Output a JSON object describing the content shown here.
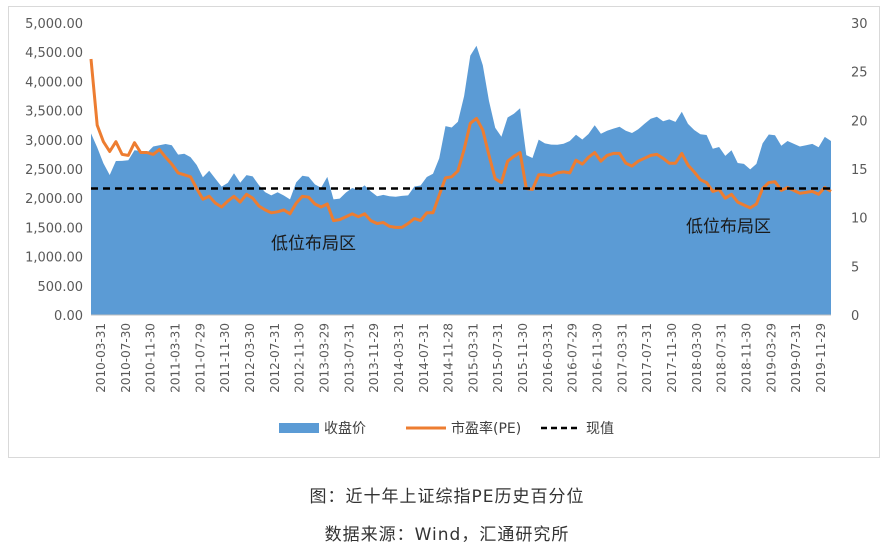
{
  "caption": {
    "title": "图：近十年上证综指PE历史百分位",
    "source": "数据来源：Wind，汇通研究所"
  },
  "colors": {
    "area": "#5B9BD5",
    "pe_line": "#ED7D31",
    "current_line": "#000000",
    "axis_text": "#595959"
  },
  "chart_data": {
    "type": "area",
    "x_labels": [
      "2010-03-31",
      "2010-07-30",
      "2010-11-30",
      "2011-03-31",
      "2011-07-29",
      "2011-11-30",
      "2012-03-30",
      "2012-07-31",
      "2012-11-30",
      "2013-03-29",
      "2013-07-31",
      "2013-11-29",
      "2014-03-31",
      "2014-07-31",
      "2014-11-28",
      "2015-03-31",
      "2015-07-31",
      "2015-11-30",
      "2016-03-31",
      "2016-07-29",
      "2016-11-30",
      "2017-03-31",
      "2017-07-31",
      "2017-11-30",
      "2018-03-30",
      "2018-07-31",
      "2018-11-30",
      "2019-03-29",
      "2019-07-31",
      "2019-11-29"
    ],
    "left_axis": {
      "min": 0,
      "max": 5000,
      "step": 500,
      "ticks": [
        "0.00",
        "500.00",
        "1,000.00",
        "1,500.00",
        "2,000.00",
        "2,500.00",
        "3,000.00",
        "3,500.00",
        "4,000.00",
        "4,500.00",
        "5,000.00"
      ]
    },
    "right_axis": {
      "min": 0,
      "max": 30,
      "step": 5,
      "ticks": [
        "0",
        "5",
        "10",
        "15",
        "20",
        "25",
        "30"
      ]
    },
    "legend": [
      "收盘价",
      "市盈率(PE)",
      "现值"
    ],
    "annotations": [
      "低位布局区",
      "低位布局区"
    ],
    "current_value": 13,
    "series": [
      {
        "name": "收盘价",
        "axis": "left",
        "kind": "area",
        "values": [
          3109,
          2870,
          2600,
          2398,
          2637,
          2638,
          2650,
          2820,
          2809,
          2778,
          2885,
          2905,
          2928,
          2906,
          2747,
          2762,
          2703,
          2568,
          2359,
          2470,
          2333,
          2199,
          2262,
          2428,
          2263,
          2396,
          2373,
          2225,
          2104,
          2048,
          2103,
          2047,
          1980,
          2270,
          2385,
          2366,
          2237,
          2178,
          2365,
          1979,
          1994,
          2098,
          2174,
          2141,
          2220,
          2116,
          2033,
          2056,
          2033,
          2026,
          2039,
          2048,
          2201,
          2217,
          2363,
          2420,
          2682,
          3234,
          3210,
          3310,
          3748,
          4441,
          4611,
          4277,
          3664,
          3206,
          3053,
          3382,
          3445,
          3539,
          2738,
          2688,
          3004,
          2938,
          2917,
          2916,
          2933,
          2980,
          3085,
          3005,
          3100,
          3250,
          3104,
          3155,
          3192,
          3223,
          3154,
          3117,
          3180,
          3273,
          3360,
          3393,
          3317,
          3349,
          3307,
          3480,
          3273,
          3168,
          3095,
          3082,
          2847,
          2876,
          2725,
          2821,
          2603,
          2588,
          2494,
          2588,
          2939,
          3091,
          3078,
          2898,
          2979,
          2933,
          2886,
          2905,
          2929,
          2871,
          3050,
          2979
        ]
      },
      {
        "name": "市盈率(PE)",
        "axis": "right",
        "kind": "line",
        "values": [
          26.3,
          19.5,
          17.8,
          16.8,
          17.8,
          16.5,
          16.4,
          17.7,
          16.7,
          16.7,
          16.5,
          17.0,
          16.2,
          15.5,
          14.6,
          14.4,
          14.2,
          13.0,
          11.9,
          12.2,
          11.5,
          11.1,
          11.7,
          12.2,
          11.6,
          12.4,
          12.0,
          11.2,
          10.8,
          10.5,
          10.6,
          10.8,
          10.4,
          11.5,
          12.2,
          12.1,
          11.4,
          11.1,
          11.4,
          9.7,
          9.8,
          10.1,
          10.4,
          10.1,
          10.4,
          9.7,
          9.4,
          9.5,
          9.1,
          9.0,
          9.0,
          9.4,
          9.9,
          9.7,
          10.5,
          10.5,
          12.3,
          14.1,
          14.2,
          14.8,
          17.0,
          19.7,
          20.2,
          19.0,
          16.4,
          14.0,
          13.6,
          15.8,
          16.3,
          16.7,
          13.0,
          12.9,
          14.4,
          14.4,
          14.3,
          14.6,
          14.7,
          14.6,
          15.9,
          15.5,
          16.2,
          16.7,
          15.8,
          16.4,
          16.6,
          16.6,
          15.6,
          15.3,
          15.8,
          16.1,
          16.4,
          16.5,
          16.1,
          15.6,
          15.6,
          16.6,
          15.4,
          14.7,
          13.9,
          13.6,
          12.7,
          12.9,
          12.0,
          12.4,
          11.6,
          11.3,
          11.0,
          11.4,
          13.0,
          13.6,
          13.7,
          12.8,
          13.1,
          12.8,
          12.5,
          12.6,
          12.7,
          12.4,
          13.1,
          12.7
        ]
      }
    ]
  }
}
